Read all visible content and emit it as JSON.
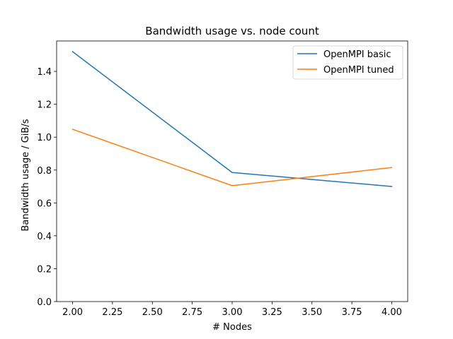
{
  "chart_data": {
    "type": "line",
    "title": "Bandwidth usage vs. node count",
    "xlabel": "# Nodes",
    "ylabel": "Bandwidth usage / GiB/s",
    "xlim": [
      1.9,
      4.1
    ],
    "ylim": [
      0.0,
      1.585
    ],
    "xticks": [
      2.0,
      2.25,
      2.5,
      2.75,
      3.0,
      3.25,
      3.5,
      3.75,
      4.0
    ],
    "xtick_labels": [
      "2.00",
      "2.25",
      "2.50",
      "2.75",
      "3.00",
      "3.25",
      "3.50",
      "3.75",
      "4.00"
    ],
    "yticks": [
      0.0,
      0.2,
      0.4,
      0.6,
      0.8,
      1.0,
      1.2,
      1.4
    ],
    "ytick_labels": [
      "0.0",
      "0.2",
      "0.4",
      "0.6",
      "0.8",
      "1.0",
      "1.2",
      "1.4"
    ],
    "x": [
      2,
      3,
      4
    ],
    "series": [
      {
        "name": "OpenMPI basic",
        "color": "#1f77b4",
        "values": [
          1.52,
          0.785,
          0.7
        ]
      },
      {
        "name": "OpenMPI tuned",
        "color": "#ff7f0e",
        "values": [
          1.048,
          0.705,
          0.815
        ]
      }
    ],
    "legend_position": "top-right",
    "grid": false
  }
}
